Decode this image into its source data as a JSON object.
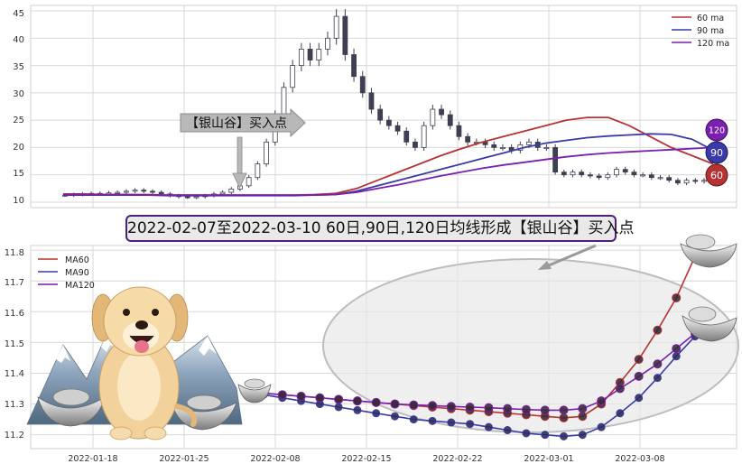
{
  "colors": {
    "ma60": "#b83232",
    "ma90": "#3a3aa8",
    "ma120": "#7a1fb0",
    "candle": "#3f3f52",
    "grid": "#d7d7d7",
    "panel_border": "#cfcfcf",
    "banner_border": "#4b1f7a"
  },
  "banner_text": "2022-02-07至2022-03-10 60日,90日,120日均线形成【银山谷】买入点",
  "top_panel": {
    "callout_text": "【银山谷】买入点",
    "legend": [
      "60 ma",
      "90 ma",
      "120 ma"
    ],
    "badges": [
      "120",
      "90",
      "60"
    ],
    "yticks": [
      "10",
      "15",
      "20",
      "25",
      "30",
      "35",
      "40",
      "45"
    ]
  },
  "bottom_panel": {
    "legend": [
      "MA60",
      "MA90",
      "MA120"
    ],
    "yticks": [
      "11.2",
      "11.3",
      "11.4",
      "11.5",
      "11.6",
      "11.7",
      "11.8"
    ],
    "xticks": [
      "2022-01-18",
      "2022-01-25",
      "2022-02-08",
      "2022-02-15",
      "2022-02-22",
      "2022-03-01",
      "2022-03-08"
    ]
  },
  "chart_data": [
    {
      "type": "line",
      "panel": "top",
      "ylim": [
        9,
        46
      ],
      "yticks": [
        10,
        15,
        20,
        25,
        30,
        35,
        40,
        45
      ],
      "grid": true,
      "legend_position": "top-right",
      "candles_close_approx": [
        11.3,
        11.4,
        11.5,
        11.6,
        11.5,
        11.7,
        11.8,
        12.0,
        12.2,
        12.0,
        11.8,
        11.5,
        11.2,
        11.0,
        10.9,
        11.0,
        11.2,
        11.5,
        11.8,
        12.4,
        13.0,
        14.5,
        17.0,
        21.0,
        26.0,
        31.0,
        35.0,
        38.0,
        36.0,
        38.0,
        40.0,
        44.0,
        37.0,
        33.0,
        30.0,
        27.0,
        25.0,
        24.0,
        23.0,
        21.0,
        20.0,
        24.0,
        27.0,
        26.0,
        24.0,
        22.0,
        21.0,
        21.0,
        20.5,
        20.0,
        20.0,
        19.5,
        20.5,
        21.0,
        20.0,
        20.0,
        15.5,
        15.0,
        15.5,
        15.0,
        14.8,
        14.5,
        15.0,
        16.0,
        15.5,
        15.0,
        15.0,
        14.5,
        14.5,
        14.0,
        13.5,
        14.0,
        13.8,
        14.0
      ],
      "series": [
        {
          "name": "60 ma",
          "values": [
            11.5,
            11.5,
            11.4,
            11.4,
            11.4,
            11.3,
            11.3,
            11.3,
            11.3,
            11.3,
            11.3,
            11.3,
            11.4,
            11.6,
            12.5,
            14.0,
            15.5,
            17.0,
            18.5,
            19.8,
            21.0,
            22.0,
            23.0,
            24.0,
            25.0,
            25.5,
            25.5,
            24.0,
            22.0,
            20.0,
            18.5,
            17.0
          ]
        },
        {
          "name": "90 ma",
          "values": [
            11.3,
            11.3,
            11.3,
            11.3,
            11.3,
            11.2,
            11.2,
            11.2,
            11.2,
            11.2,
            11.2,
            11.2,
            11.3,
            11.4,
            12.0,
            13.0,
            14.0,
            15.0,
            16.0,
            17.0,
            18.0,
            19.0,
            20.0,
            20.8,
            21.3,
            21.8,
            22.1,
            22.3,
            22.5,
            22.4,
            21.5,
            19.5
          ]
        },
        {
          "name": "120 ma",
          "values": [
            11.4,
            11.4,
            11.4,
            11.4,
            11.3,
            11.3,
            11.3,
            11.3,
            11.3,
            11.3,
            11.3,
            11.3,
            11.3,
            11.4,
            11.8,
            12.5,
            13.2,
            14.0,
            14.8,
            15.5,
            16.2,
            16.8,
            17.3,
            17.8,
            18.3,
            18.7,
            19.0,
            19.2,
            19.4,
            19.6,
            19.8,
            20.0
          ]
        }
      ]
    },
    {
      "type": "line",
      "panel": "bottom",
      "ylim": [
        11.155,
        11.815
      ],
      "yticks": [
        11.2,
        11.3,
        11.4,
        11.5,
        11.6,
        11.7,
        11.8
      ],
      "x": [
        "2022-02-07",
        "2022-02-08",
        "2022-02-09",
        "2022-02-10",
        "2022-02-11",
        "2022-02-14",
        "2022-02-15",
        "2022-02-16",
        "2022-02-17",
        "2022-02-18",
        "2022-02-21",
        "2022-02-22",
        "2022-02-23",
        "2022-02-24",
        "2022-02-25",
        "2022-02-28",
        "2022-03-01",
        "2022-03-02",
        "2022-03-03",
        "2022-03-04",
        "2022-03-07",
        "2022-03-08",
        "2022-03-09",
        "2022-03-10"
      ],
      "xticks": [
        "2022-01-18",
        "2022-01-25",
        "2022-02-08",
        "2022-02-15",
        "2022-02-22",
        "2022-03-01",
        "2022-03-08"
      ],
      "grid": true,
      "legend_position": "top-left",
      "series": [
        {
          "name": "MA60",
          "values": [
            11.335,
            11.33,
            11.325,
            11.32,
            11.315,
            11.31,
            11.305,
            11.3,
            11.295,
            11.29,
            11.285,
            11.28,
            11.275,
            11.27,
            11.265,
            11.26,
            11.255,
            11.26,
            11.3,
            11.37,
            11.445,
            11.54,
            11.645,
            11.78
          ]
        },
        {
          "name": "MA90",
          "values": [
            11.33,
            11.32,
            11.31,
            11.3,
            11.29,
            11.28,
            11.27,
            11.26,
            11.25,
            11.245,
            11.24,
            11.235,
            11.225,
            11.215,
            11.205,
            11.2,
            11.195,
            11.2,
            11.225,
            11.27,
            11.32,
            11.385,
            11.455,
            11.52
          ]
        },
        {
          "name": "MA120",
          "values": [
            11.335,
            11.33,
            11.325,
            11.32,
            11.315,
            11.31,
            11.305,
            11.3,
            11.297,
            11.295,
            11.292,
            11.29,
            11.288,
            11.285,
            11.282,
            11.28,
            11.28,
            11.285,
            11.31,
            11.35,
            11.39,
            11.43,
            11.48,
            11.53
          ]
        }
      ]
    }
  ]
}
